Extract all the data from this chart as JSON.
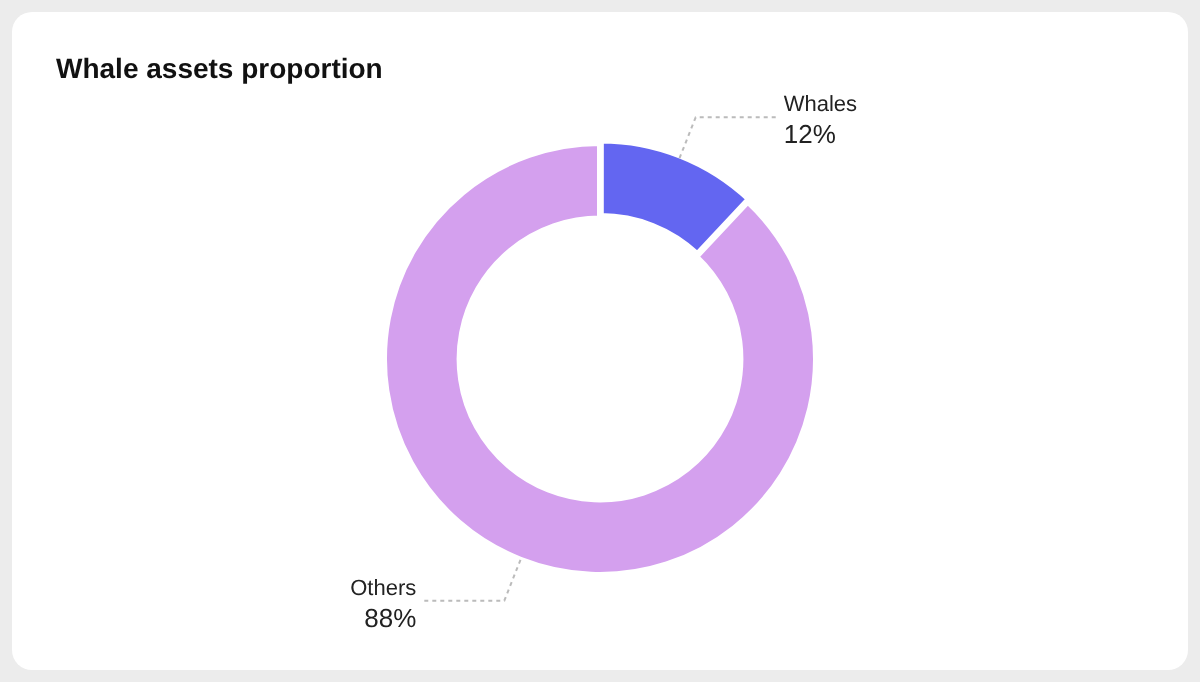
{
  "chart_data": {
    "type": "donut",
    "title": "Whale assets proportion",
    "categories": [
      "Whales",
      "Others"
    ],
    "values": [
      12,
      88
    ],
    "colors": [
      "#6366f1",
      "#d4a0ee"
    ],
    "value_labels": [
      "12%",
      "88%"
    ]
  }
}
